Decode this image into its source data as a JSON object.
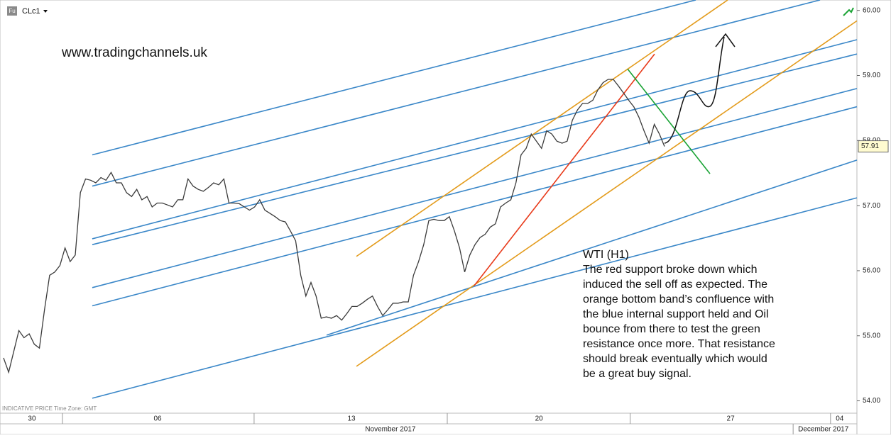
{
  "chart_data": {
    "type": "line",
    "header_icon": "Fu",
    "watermark": "www.tradingchannels.uk",
    "footer_note": "INDICATIVE PRICE   Time Zone: GMT",
    "annotation": {
      "title": "WTI (H1)",
      "lines": [
        "The red support broke down which",
        "induced the sell off as expected. The",
        "orange bottom band’s confluence with",
        "the blue internal support held and Oil",
        "bounce from there to test the green",
        "resistance once more. That resistance",
        "should break eventually which would",
        "be a great buy signal."
      ]
    },
    "series": [
      {
        "name": "CLc1",
        "color": "#3b3b3b",
        "values": [
          54.66,
          54.44,
          54.76,
          55.08,
          54.97,
          55.03,
          54.87,
          54.81,
          55.4,
          55.93,
          55.98,
          56.08,
          56.35,
          56.14,
          56.24,
          57.2,
          57.41,
          57.39,
          57.35,
          57.43,
          57.39,
          57.51,
          57.35,
          57.35,
          57.2,
          57.14,
          57.25,
          57.09,
          57.14,
          56.98,
          57.04,
          57.04,
          57.01,
          56.98,
          57.09,
          57.09,
          57.41,
          57.3,
          57.25,
          57.22,
          57.28,
          57.35,
          57.32,
          57.41,
          57.04,
          57.04,
          57.03,
          56.98,
          56.93,
          56.98,
          57.09,
          56.93,
          56.88,
          56.83,
          56.77,
          56.75,
          56.61,
          56.46,
          55.93,
          55.61,
          55.82,
          55.61,
          55.27,
          55.29,
          55.27,
          55.31,
          55.24,
          55.34,
          55.45,
          55.45,
          55.5,
          55.56,
          55.61,
          55.45,
          55.31,
          55.4,
          55.5,
          55.5,
          55.52,
          55.52,
          55.93,
          56.14,
          56.4,
          56.77,
          56.79,
          56.77,
          56.77,
          56.83,
          56.61,
          56.35,
          55.98,
          56.24,
          56.4,
          56.51,
          56.56,
          56.67,
          56.72,
          56.98,
          57.04,
          57.09,
          57.35,
          57.78,
          57.88,
          58.1,
          57.99,
          57.88,
          58.15,
          58.1,
          57.99,
          57.96,
          57.99,
          58.31,
          58.47,
          58.57,
          58.57,
          58.62,
          58.78,
          58.89,
          58.94,
          58.94,
          58.84,
          58.73,
          58.62,
          58.52,
          58.36,
          58.15,
          57.96,
          58.25,
          58.1,
          57.91
        ]
      }
    ],
    "last_price": 57.91,
    "xlim": [
      -0.69,
      166.55
    ],
    "ylim": [
      53.81,
      60.16
    ],
    "yticks": [
      {
        "value": 54,
        "label": "54.00"
      },
      {
        "value": 55,
        "label": "55.00"
      },
      {
        "value": 56,
        "label": "56.00"
      },
      {
        "value": 57,
        "label": "57.00"
      },
      {
        "value": 58,
        "label": "58.00"
      },
      {
        "value": 59,
        "label": "59.00"
      },
      {
        "value": 60,
        "label": "60.00"
      }
    ],
    "xticks": [
      {
        "value": 5.54,
        "label": "30"
      },
      {
        "value": 30.07,
        "label": "06"
      },
      {
        "value": 67.9,
        "label": "13"
      },
      {
        "value": 104.5,
        "label": "20"
      },
      {
        "value": 141.9,
        "label": "27"
      },
      {
        "value": 163.2,
        "label": "04"
      }
    ],
    "week_dividers": [
      11.5,
      48.9,
      86.6,
      122.3,
      161.4
    ],
    "months": [
      {
        "value": 75.5,
        "label": "November 2017"
      },
      {
        "value": 160.0,
        "label": "December 2017"
      }
    ],
    "month_dividers": [
      154.1
    ],
    "lines": [
      {
        "color": "#3a87c8",
        "x": [
          17.32,
          135.1
        ],
        "y": [
          57.78,
          60.16
        ]
      },
      {
        "color": "#3a87c8",
        "x": [
          17.32,
          159.35
        ],
        "y": [
          57.3,
          60.16
        ]
      },
      {
        "color": "#3a87c8",
        "x": [
          17.32,
          166.55
        ],
        "y": [
          56.49,
          59.55
        ]
      },
      {
        "color": "#3a87c8",
        "x": [
          17.32,
          166.55
        ],
        "y": [
          56.4,
          59.33
        ]
      },
      {
        "color": "#3a87c8",
        "x": [
          17.32,
          166.55
        ],
        "y": [
          55.74,
          58.8
        ]
      },
      {
        "color": "#3a87c8",
        "x": [
          17.32,
          166.55
        ],
        "y": [
          55.46,
          58.52
        ]
      },
      {
        "color": "#3a87c8",
        "x": [
          17.32,
          166.55
        ],
        "y": [
          54.04,
          57.12
        ]
      },
      {
        "color": "#3a87c8",
        "x": [
          63.05,
          166.55
        ],
        "y": [
          55.01,
          57.7
        ]
      },
      {
        "color": "#e39b1b",
        "x": [
          68.87,
          141.33
        ],
        "y": [
          56.22,
          60.16
        ]
      },
      {
        "color": "#e39b1b",
        "x": [
          68.87,
          166.55
        ],
        "y": [
          54.53,
          59.84
        ]
      },
      {
        "color": "#e83a1a",
        "x": [
          91.87,
          127.06
        ],
        "y": [
          55.77,
          59.33
        ]
      },
      {
        "color": "#1aa335",
        "x": [
          121.8,
          137.87
        ],
        "y": [
          59.1,
          57.49
        ]
      }
    ]
  }
}
